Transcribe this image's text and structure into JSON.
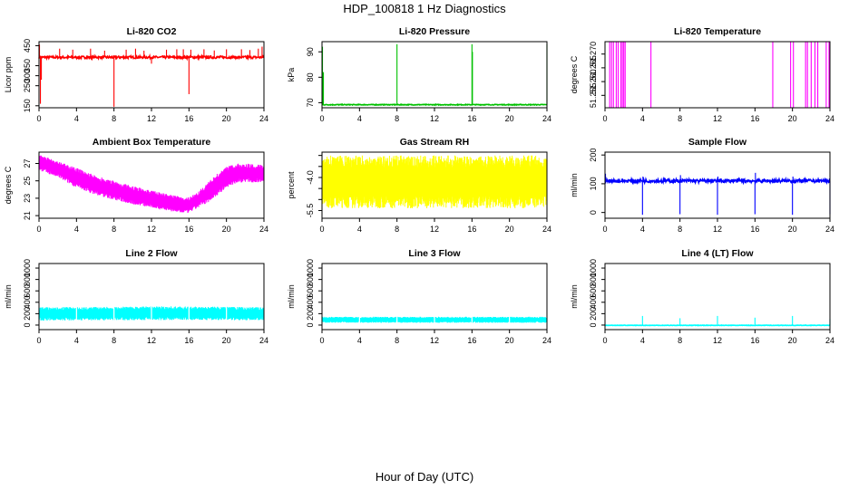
{
  "title": "HDP_100818  1 Hz Diagnostics",
  "xlabel": "Hour of Day (UTC)",
  "chart_data": [
    {
      "type": "line",
      "title": "Li-820 CO2",
      "ylabel": "Licor ppm",
      "color": "#ff0000",
      "xlim": [
        0,
        24
      ],
      "xticks": [
        0,
        4,
        8,
        12,
        16,
        20,
        24
      ],
      "ylim": [
        140,
        470
      ],
      "yticks": [
        150,
        250,
        300,
        350,
        450
      ],
      "series": [
        {
          "baseline": 392,
          "noise": 6,
          "spikes": [
            {
              "x": 0.05,
              "y": 455
            },
            {
              "x": 0.15,
              "y": 160
            },
            {
              "x": 0.25,
              "y": 280
            },
            {
              "x": 2.2,
              "y": 435
            },
            {
              "x": 3.6,
              "y": 430
            },
            {
              "x": 5.5,
              "y": 435
            },
            {
              "x": 7.0,
              "y": 425
            },
            {
              "x": 8.0,
              "y": 145
            },
            {
              "x": 9.3,
              "y": 430
            },
            {
              "x": 10.3,
              "y": 435
            },
            {
              "x": 11.2,
              "y": 425
            },
            {
              "x": 12.0,
              "y": 360
            },
            {
              "x": 13.6,
              "y": 430
            },
            {
              "x": 14.7,
              "y": 432
            },
            {
              "x": 15.4,
              "y": 432
            },
            {
              "x": 16.0,
              "y": 208
            },
            {
              "x": 16.2,
              "y": 430
            },
            {
              "x": 17.6,
              "y": 432
            },
            {
              "x": 18.7,
              "y": 426
            },
            {
              "x": 20.0,
              "y": 432
            },
            {
              "x": 21.6,
              "y": 432
            },
            {
              "x": 22.5,
              "y": 428
            },
            {
              "x": 23.4,
              "y": 435
            },
            {
              "x": 23.8,
              "y": 445
            }
          ]
        }
      ]
    },
    {
      "type": "line",
      "title": "Li-820 Pressure",
      "ylabel": "kPa",
      "color": "#00c000",
      "xlim": [
        0,
        24
      ],
      "xticks": [
        0,
        4,
        8,
        12,
        16,
        20,
        24
      ],
      "ylim": [
        68,
        94
      ],
      "yticks": [
        70,
        80,
        90
      ],
      "series": [
        {
          "baseline": 69.2,
          "noise": 0.15,
          "spikes": [
            {
              "x": 0.05,
              "y": 92
            },
            {
              "x": 0.15,
              "y": 82
            },
            {
              "x": 8.0,
              "y": 93
            },
            {
              "x": 16.0,
              "y": 93
            },
            {
              "x": 16.05,
              "y": 90
            },
            {
              "x": 24.0,
              "y": 93
            }
          ]
        }
      ]
    },
    {
      "type": "line",
      "title": "Li-820 Temperature",
      "ylabel": "degrees C",
      "color": "#ff00ff",
      "xlim": [
        0,
        24
      ],
      "xticks": [
        0,
        4,
        8,
        12,
        16,
        20,
        24
      ],
      "ylim": [
        51.2505,
        51.2745
      ],
      "yticks": [
        51.255,
        51.26,
        51.265,
        51.27
      ],
      "ytick_labels": [
        "51.255",
        "51.260",
        "51.265",
        "51.270"
      ],
      "series": [
        {
          "baseline": 51.2505,
          "noise": 0,
          "spikes": [
            {
              "x": 0.5,
              "y": 51.2745
            },
            {
              "x": 0.7,
              "y": 51.2745
            },
            {
              "x": 0.9,
              "y": 51.2745
            },
            {
              "x": 1.2,
              "y": 51.2745
            },
            {
              "x": 1.4,
              "y": 51.2745
            },
            {
              "x": 1.7,
              "y": 51.2745
            },
            {
              "x": 1.85,
              "y": 51.2745
            },
            {
              "x": 2.0,
              "y": 51.2745
            },
            {
              "x": 2.15,
              "y": 51.2745
            },
            {
              "x": 4.9,
              "y": 51.2745
            },
            {
              "x": 17.9,
              "y": 51.2745
            },
            {
              "x": 19.8,
              "y": 51.2745
            },
            {
              "x": 20.1,
              "y": 51.2745
            },
            {
              "x": 21.4,
              "y": 51.2745
            },
            {
              "x": 21.6,
              "y": 51.2745
            },
            {
              "x": 22.0,
              "y": 51.2745
            },
            {
              "x": 22.4,
              "y": 51.2745
            },
            {
              "x": 22.7,
              "y": 51.2745
            },
            {
              "x": 23.6,
              "y": 51.2745
            },
            {
              "x": 23.9,
              "y": 51.2745
            }
          ]
        }
      ]
    },
    {
      "type": "area",
      "title": "Ambient Box Temperature",
      "ylabel": "degrees C",
      "color": "#ff00ff",
      "xlim": [
        0,
        24
      ],
      "xticks": [
        0,
        4,
        8,
        12,
        16,
        20,
        24
      ],
      "ylim": [
        20.7,
        28.3
      ],
      "yticks": [
        21,
        23,
        25,
        27
      ],
      "series": [
        {
          "x": [
            0,
            2,
            4,
            6,
            8,
            10,
            12,
            14,
            15,
            16,
            17,
            18,
            19,
            20,
            21,
            22,
            23,
            24
          ],
          "lower": [
            26.2,
            25.4,
            24.2,
            23.4,
            22.8,
            22.3,
            21.9,
            21.5,
            21.3,
            21.3,
            21.9,
            22.5,
            23.3,
            24.2,
            24.7,
            24.9,
            24.8,
            24.9
          ],
          "upper": [
            28.0,
            27.3,
            26.5,
            25.6,
            25.0,
            24.4,
            23.9,
            23.4,
            23.2,
            23.1,
            23.8,
            24.8,
            25.8,
            26.6,
            27.0,
            27.0,
            26.9,
            26.9
          ]
        }
      ]
    },
    {
      "type": "area",
      "title": "Gas Stream RH",
      "ylabel": "percent",
      "color": "#ffff00",
      "xlim": [
        0,
        24
      ],
      "xticks": [
        0,
        4,
        8,
        12,
        16,
        20,
        24
      ],
      "ylim": [
        -5.85,
        -2.85
      ],
      "yticks": [
        -5.5,
        -4.0
      ],
      "ytick_labels": [
        "-5.5",
        "-4.0"
      ],
      "extra_yticks": [
        -5.0,
        -4.5,
        -3.5,
        -3.0
      ],
      "series": [
        {
          "x": [
            0,
            24
          ],
          "lower": [
            -5.4,
            -5.4
          ],
          "upper": [
            -3.0,
            -3.0
          ]
        }
      ]
    },
    {
      "type": "line",
      "title": "Sample Flow",
      "ylabel": "ml/min",
      "color": "#0000ff",
      "xlim": [
        0,
        24
      ],
      "xticks": [
        0,
        4,
        8,
        12,
        16,
        20,
        24
      ],
      "ylim": [
        -20,
        210
      ],
      "yticks": [
        0,
        100,
        200
      ],
      "series": [
        {
          "baseline": 110,
          "noise": 6,
          "spikes": [
            {
              "x": 0.05,
              "y": 135
            },
            {
              "x": 4.0,
              "y": -8
            },
            {
              "x": 4.05,
              "y": 125
            },
            {
              "x": 8.0,
              "y": -6
            },
            {
              "x": 8.05,
              "y": 130
            },
            {
              "x": 12.0,
              "y": -8
            },
            {
              "x": 12.05,
              "y": 125
            },
            {
              "x": 16.0,
              "y": -6
            },
            {
              "x": 16.05,
              "y": 138
            },
            {
              "x": 20.0,
              "y": -8
            },
            {
              "x": 20.05,
              "y": 125
            },
            {
              "x": 24.0,
              "y": -6
            }
          ]
        }
      ]
    },
    {
      "type": "area",
      "title": "Line 2 Flow",
      "ylabel": "ml/min",
      "color": "#00ffff",
      "xlim": [
        0,
        24
      ],
      "xticks": [
        0,
        4,
        8,
        12,
        16,
        20,
        24
      ],
      "ylim": [
        -80,
        1080
      ],
      "yticks": [
        0,
        200,
        400,
        600,
        800,
        1000
      ],
      "series": [
        {
          "x": [
            0,
            4,
            8,
            12,
            16,
            20,
            24
          ],
          "lower": [
            80,
            80,
            85,
            85,
            85,
            85,
            85
          ],
          "upper": [
            315,
            315,
            320,
            330,
            330,
            320,
            315
          ],
          "gaps": [
            4.0,
            8.0,
            12.0,
            16.0,
            20.0
          ]
        }
      ]
    },
    {
      "type": "area",
      "title": "Line 3 Flow",
      "ylabel": "ml/min",
      "color": "#00ffff",
      "xlim": [
        0,
        24
      ],
      "xticks": [
        0,
        4,
        8,
        12,
        16,
        20,
        24
      ],
      "ylim": [
        -80,
        1080
      ],
      "yticks": [
        0,
        200,
        400,
        600,
        800,
        1000
      ],
      "series": [
        {
          "x": [
            0,
            24
          ],
          "lower": [
            40,
            40
          ],
          "upper": [
            145,
            145
          ],
          "gaps": [
            4.0,
            8.0,
            12.0,
            16.0,
            20.0
          ]
        }
      ]
    },
    {
      "type": "line",
      "title": "Line 4 (LT) Flow",
      "ylabel": "ml/min",
      "color": "#00ffff",
      "xlim": [
        0,
        24
      ],
      "xticks": [
        0,
        4,
        8,
        12,
        16,
        20,
        24
      ],
      "ylim": [
        -80,
        1080
      ],
      "yticks": [
        0,
        200,
        400,
        600,
        800,
        1000
      ],
      "series": [
        {
          "baseline": -5,
          "noise": 4,
          "spikes": [
            {
              "x": 4.0,
              "y": 160
            },
            {
              "x": 8.0,
              "y": 120
            },
            {
              "x": 12.0,
              "y": 160
            },
            {
              "x": 16.0,
              "y": 130
            },
            {
              "x": 20.0,
              "y": 160
            },
            {
              "x": 24.0,
              "y": 110
            }
          ]
        }
      ]
    }
  ]
}
